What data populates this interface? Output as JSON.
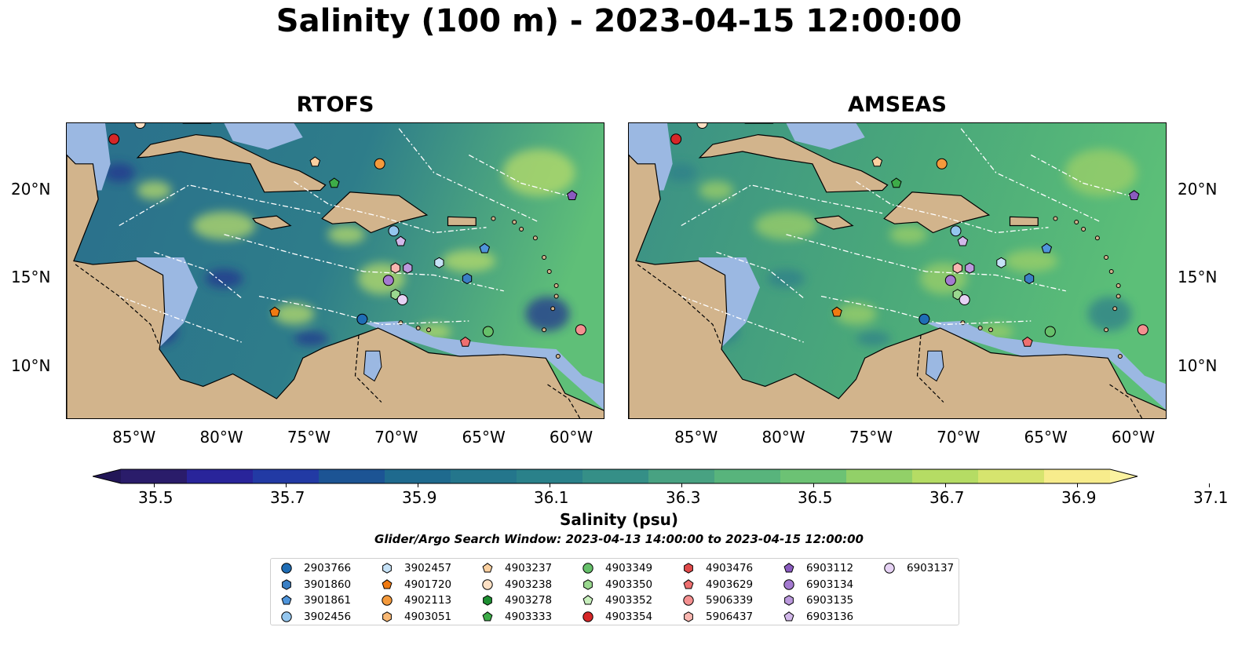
{
  "title": "Salinity (100 m) - 2023-04-15 12:00:00",
  "panels": [
    {
      "name": "RTOFS",
      "colors": {
        "ocean": "#2a6f8c",
        "caribbean": "#2e7d8a",
        "atlantic": "#5fbf78",
        "deep": "#2a1c6a",
        "swirl": "#b8dc6a"
      }
    },
    {
      "name": "AMSEAS",
      "colors": {
        "ocean": "#3a8f86",
        "caribbean": "#4aa87a",
        "atlantic": "#5cbf78",
        "deep": "#9dbde3",
        "swirl": "#9fd068"
      }
    }
  ],
  "axes": {
    "lon_ticks": [
      "85°W",
      "80°W",
      "75°W",
      "70°W",
      "65°W",
      "60°W"
    ],
    "lat_ticks": [
      "20°N",
      "15°N",
      "10°N"
    ]
  },
  "colorbar": {
    "ticks": [
      "35.5",
      "35.7",
      "35.9",
      "36.1",
      "36.3",
      "36.5",
      "36.7",
      "36.9",
      "37.1"
    ],
    "colors": [
      "#2a1c6a",
      "#29249a",
      "#223aa4",
      "#1c5494",
      "#1f6a8e",
      "#24768c",
      "#2a818a",
      "#358f87",
      "#48a282",
      "#58b47c",
      "#6cc274",
      "#92d068",
      "#b5dc64",
      "#d6e46e",
      "#f7ec8c"
    ],
    "label": "Salinity (psu)",
    "subtitle": "Glider/Argo Search Window: 2023-04-13 14:00:00 to 2023-04-15 12:00:00"
  },
  "colors": {
    "land": "#d2b48c",
    "shelf": "#9bb8e2"
  },
  "legend": [
    {
      "id": "2903766",
      "marker": "circle",
      "color": "#1f6db5"
    },
    {
      "id": "3901860",
      "marker": "hexagon",
      "color": "#3a7fc4"
    },
    {
      "id": "3901861",
      "marker": "pentagon",
      "color": "#4f95db"
    },
    {
      "id": "3902456",
      "marker": "circle",
      "color": "#94c6ee"
    },
    {
      "id": "3902457",
      "marker": "hexagon",
      "color": "#c6e2f7"
    },
    {
      "id": "4901720",
      "marker": "pentagon",
      "color": "#f07a12"
    },
    {
      "id": "4902113",
      "marker": "circle",
      "color": "#f49a3c"
    },
    {
      "id": "4903051",
      "marker": "hexagon",
      "color": "#f8b874"
    },
    {
      "id": "4903237",
      "marker": "pentagon",
      "color": "#fbd0a0"
    },
    {
      "id": "4903238",
      "marker": "circle",
      "color": "#fde0c4"
    },
    {
      "id": "4903278",
      "marker": "hexagon",
      "color": "#1e8f32"
    },
    {
      "id": "4903333",
      "marker": "pentagon",
      "color": "#3dac48"
    },
    {
      "id": "4903349",
      "marker": "circle",
      "color": "#66c06a"
    },
    {
      "id": "4903350",
      "marker": "hexagon",
      "color": "#9ad88f"
    },
    {
      "id": "4903352",
      "marker": "pentagon",
      "color": "#c8efbd"
    },
    {
      "id": "4903354",
      "marker": "circle",
      "color": "#d62728"
    },
    {
      "id": "4903476",
      "marker": "hexagon",
      "color": "#e04a4a"
    },
    {
      "id": "4903629",
      "marker": "pentagon",
      "color": "#ee6f6f"
    },
    {
      "id": "5906339",
      "marker": "circle",
      "color": "#f49090"
    },
    {
      "id": "5906437",
      "marker": "hexagon",
      "color": "#f8b6b0"
    },
    {
      "id": "6903112",
      "marker": "pentagon",
      "color": "#8a5bbf"
    },
    {
      "id": "6903134",
      "marker": "circle",
      "color": "#a47ad0"
    },
    {
      "id": "6903135",
      "marker": "hexagon",
      "color": "#bb99dd"
    },
    {
      "id": "6903136",
      "marker": "pentagon",
      "color": "#d2b8ea"
    },
    {
      "id": "6903137",
      "marker": "circle",
      "color": "#e6d2f4"
    }
  ],
  "floats": [
    {
      "id": "4903354",
      "lon": -86.3,
      "lat": 22.9
    },
    {
      "id": "4903238",
      "lon": -84.8,
      "lat": 23.8
    },
    {
      "id": "4903237",
      "lon": -74.8,
      "lat": 21.6
    },
    {
      "id": "4902113",
      "lon": -71.1,
      "lat": 21.5
    },
    {
      "id": "4903333",
      "lon": -73.7,
      "lat": 20.4
    },
    {
      "id": "6903112",
      "lon": -60.1,
      "lat": 19.7
    },
    {
      "id": "3902456",
      "lon": -70.3,
      "lat": 17.7
    },
    {
      "id": "6903136",
      "lon": -69.9,
      "lat": 17.1
    },
    {
      "id": "3901861",
      "lon": -65.1,
      "lat": 16.7
    },
    {
      "id": "3902457",
      "lon": -67.7,
      "lat": 15.9
    },
    {
      "id": "5906437",
      "lon": -70.2,
      "lat": 15.6
    },
    {
      "id": "6903135",
      "lon": -69.5,
      "lat": 15.6
    },
    {
      "id": "3901860",
      "lon": -66.1,
      "lat": 15.0
    },
    {
      "id": "6903134",
      "lon": -70.6,
      "lat": 14.9
    },
    {
      "id": "4903350",
      "lon": -70.2,
      "lat": 14.1
    },
    {
      "id": "6903137",
      "lon": -69.8,
      "lat": 13.8
    },
    {
      "id": "4901720",
      "lon": -77.1,
      "lat": 13.1
    },
    {
      "id": "2903766",
      "lon": -72.1,
      "lat": 12.7
    },
    {
      "id": "4903349",
      "lon": -64.9,
      "lat": 12.0
    },
    {
      "id": "5906339",
      "lon": -59.6,
      "lat": 12.1
    },
    {
      "id": "4903629",
      "lon": -66.2,
      "lat": 11.4
    }
  ]
}
